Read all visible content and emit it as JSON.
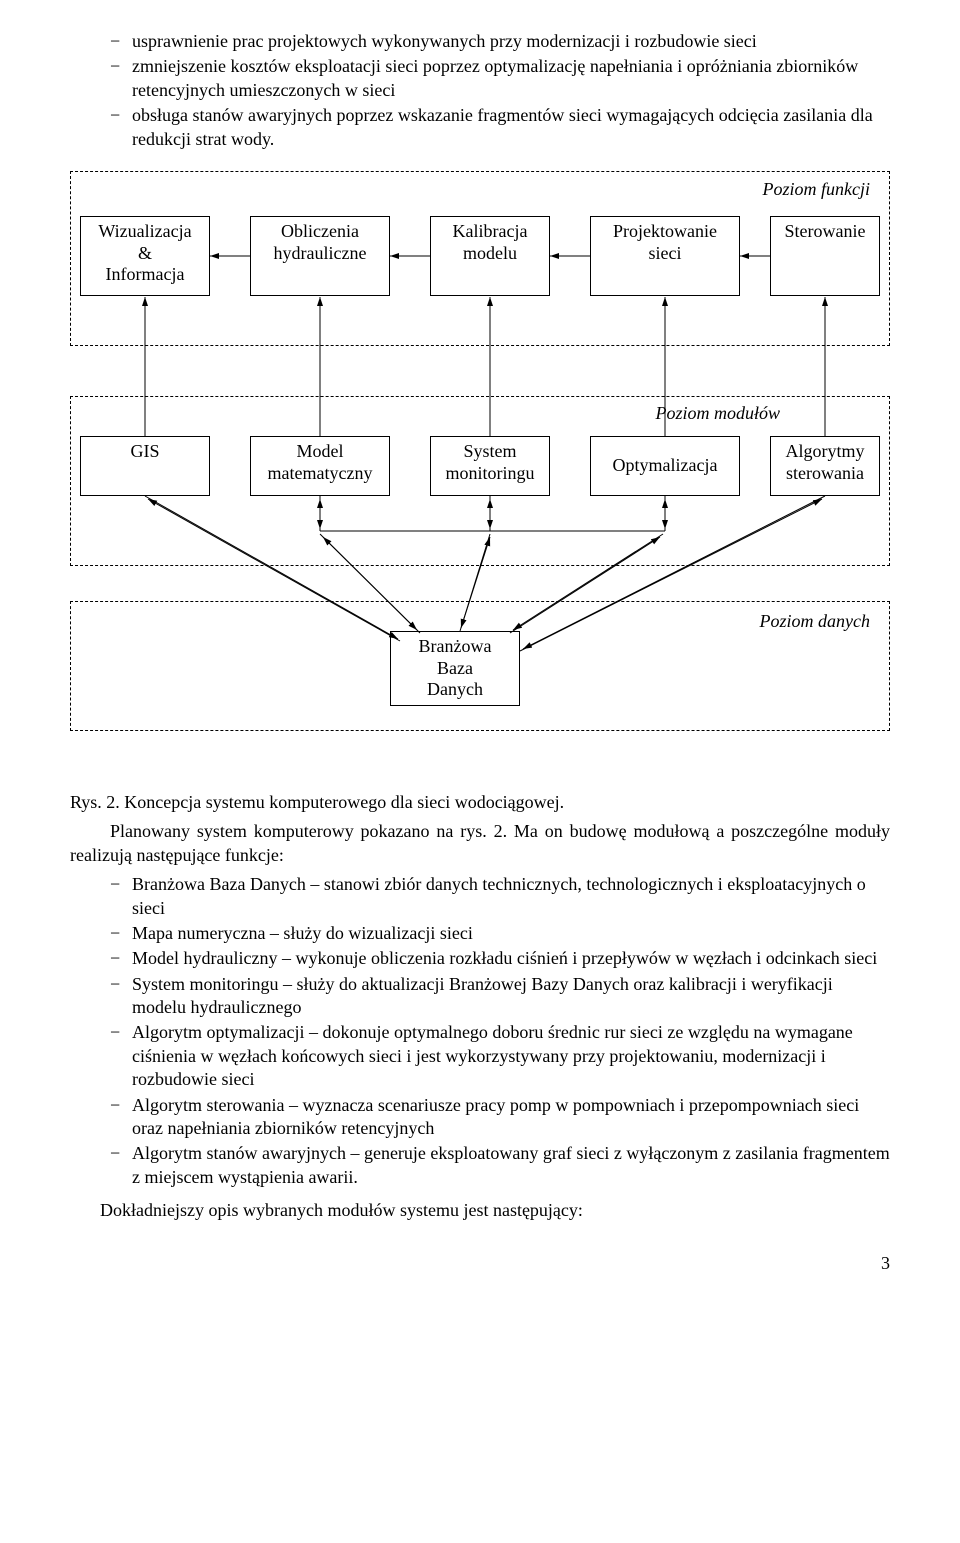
{
  "top_list": [
    "usprawnienie prac projektowych wykonywanych przy modernizacji i rozbudowie sieci",
    "zmniejszenie kosztów eksploatacji sieci poprzez optymalizację napełniania i opróżniania zbiorników retencyjnych umieszczonych w sieci",
    "obsługa stanów awaryjnych poprzez wskazanie fragmentów sieci wymagających odcięcia zasilania dla redukcji strat wody."
  ],
  "diagram": {
    "level1_label": "Poziom funkcji",
    "level2_label": "Poziom modułów",
    "level3_label": "Poziom danych",
    "nodes": {
      "n11": "Wizualizacja\n&\nInformacja",
      "n12": "Obliczenia\nhydrauliczne",
      "n13": "Kalibracja\nmodelu",
      "n14": "Projektowanie\nsieci",
      "n15": "Sterowanie",
      "n21": "GIS",
      "n22": "Model\nmatematyczny",
      "n23": "System\nmonitoringu",
      "n24": "Optymalizacja",
      "n25": "Algorytmy\nsterowania",
      "n31": "Branżowa\nBaza\nDanych"
    }
  },
  "caption": "Rys. 2. Koncepcja systemu komputerowego dla sieci wodociągowej.",
  "para1": "Planowany system komputerowy pokazano na rys. 2. Ma on budowę modułową a poszczególne moduły realizują następujące funkcje:",
  "func_list": [
    "Branżowa Baza Danych – stanowi zbiór danych technicznych, technologicznych i eksploatacyjnych o sieci",
    "Mapa numeryczna – służy do wizualizacji sieci",
    "Model hydrauliczny – wykonuje obliczenia rozkładu ciśnień i przepływów w węzłach i odcinkach sieci",
    "System monitoringu – służy do aktualizacji Branżowej Bazy Danych oraz kalibracji i weryfikacji modelu hydraulicznego",
    "Algorytm optymalizacji – dokonuje optymalnego doboru średnic rur sieci ze względu na wymagane ciśnienia w węzłach końcowych sieci i jest wykorzystywany przy projektowaniu, modernizacji i rozbudowie sieci",
    "Algorytm sterowania – wyznacza scenariusze pracy pomp w pompowniach i przepompowniach sieci oraz napełniania zbiorników retencyjnych",
    "Algorytm stanów awaryjnych – generuje eksploatowany graf sieci z wyłączonym z zasilania fragmentem z miejscem wystąpienia awarii."
  ],
  "last_para": "Dokładniejszy opis wybranych modułów systemu jest następujący:",
  "page_number": "3"
}
